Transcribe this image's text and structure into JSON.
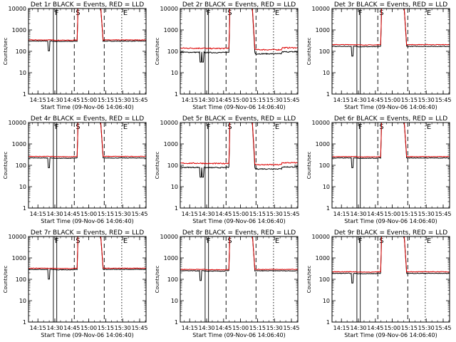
{
  "chart_data": [
    {
      "type": "line",
      "title": "Det 1r BLACK = Events, RED = LLD",
      "ylabel": "Counts/sec",
      "xlabel": "Start Time (09-Nov-06 14:06:40)",
      "series": [
        {
          "name": "Events",
          "color": "#000000",
          "values": {
            "base": 300,
            "noise": 0.03,
            "quiet": true
          }
        },
        {
          "name": "LLD",
          "color": "#dd0000",
          "values": {
            "base": 340,
            "noise": 0.03,
            "quiet": true
          }
        }
      ]
    },
    {
      "type": "line",
      "title": "Det 2r BLACK = Events, RED = LLD",
      "ylabel": "Counts/sec",
      "xlabel": "Start Time (09-Nov-06 14:06:40)",
      "series": [
        {
          "name": "Events",
          "color": "#000000",
          "values": {
            "base": 90,
            "noise": 0.05,
            "quiet": false
          }
        },
        {
          "name": "LLD",
          "color": "#dd0000",
          "values": {
            "base": 140,
            "noise": 0.06,
            "quiet": false
          }
        }
      ]
    },
    {
      "type": "line",
      "title": "Det 3r BLACK = Events, RED = LLD",
      "ylabel": "Counts/sec",
      "xlabel": "Start Time (09-Nov-06 14:06:40)",
      "series": [
        {
          "name": "Events",
          "color": "#000000",
          "values": {
            "base": 170,
            "noise": 0.03,
            "quiet": true
          }
        },
        {
          "name": "LLD",
          "color": "#dd0000",
          "values": {
            "base": 205,
            "noise": 0.03,
            "quiet": true
          }
        }
      ]
    },
    {
      "type": "line",
      "title": "Det 4r BLACK = Events, RED = LLD",
      "ylabel": "Counts/sec",
      "xlabel": "Start Time (09-Nov-06 14:06:40)",
      "series": [
        {
          "name": "Events",
          "color": "#000000",
          "values": {
            "base": 220,
            "noise": 0.03,
            "quiet": true
          }
        },
        {
          "name": "LLD",
          "color": "#dd0000",
          "values": {
            "base": 260,
            "noise": 0.03,
            "quiet": true
          }
        }
      ]
    },
    {
      "type": "line",
      "title": "Det 5r BLACK = Events, RED = LLD",
      "ylabel": "Counts/sec",
      "xlabel": "Start Time (09-Nov-06 14:06:40)",
      "series": [
        {
          "name": "Events",
          "color": "#000000",
          "values": {
            "base": 80,
            "noise": 0.05,
            "quiet": false
          }
        },
        {
          "name": "LLD",
          "color": "#dd0000",
          "values": {
            "base": 125,
            "noise": 0.06,
            "quiet": false
          }
        }
      ]
    },
    {
      "type": "line",
      "title": "Det 6r BLACK = Events, RED = LLD",
      "ylabel": "Counts/sec",
      "xlabel": "Start Time (09-Nov-06 14:06:40)",
      "series": [
        {
          "name": "Events",
          "color": "#000000",
          "values": {
            "base": 220,
            "noise": 0.03,
            "quiet": true
          }
        },
        {
          "name": "LLD",
          "color": "#dd0000",
          "values": {
            "base": 255,
            "noise": 0.03,
            "quiet": true
          }
        }
      ]
    },
    {
      "type": "line",
      "title": "Det 7r BLACK = Events, RED = LLD",
      "ylabel": "Counts/sec",
      "xlabel": "Start Time (09-Nov-06 14:06:40)",
      "series": [
        {
          "name": "Events",
          "color": "#000000",
          "values": {
            "base": 290,
            "noise": 0.03,
            "quiet": true
          }
        },
        {
          "name": "LLD",
          "color": "#dd0000",
          "values": {
            "base": 330,
            "noise": 0.03,
            "quiet": true
          }
        }
      ]
    },
    {
      "type": "line",
      "title": "Det 8r BLACK = Events, RED = LLD",
      "ylabel": "Counts/sec",
      "xlabel": "Start Time (09-Nov-06 14:06:40)",
      "series": [
        {
          "name": "Events",
          "color": "#000000",
          "values": {
            "base": 250,
            "noise": 0.03,
            "quiet": true
          }
        },
        {
          "name": "LLD",
          "color": "#dd0000",
          "values": {
            "base": 290,
            "noise": 0.03,
            "quiet": true
          }
        }
      ]
    },
    {
      "type": "line",
      "title": "Det 9r BLACK = Events, RED = LLD",
      "ylabel": "Counts/sec",
      "xlabel": "Start Time (09-Nov-06 14:06:40)",
      "series": [
        {
          "name": "Events",
          "color": "#000000",
          "values": {
            "base": 190,
            "noise": 0.03,
            "quiet": true
          }
        },
        {
          "name": "LLD",
          "color": "#dd0000",
          "values": {
            "base": 225,
            "noise": 0.03,
            "quiet": true
          }
        }
      ]
    }
  ],
  "shared": {
    "x_ticks": [
      "14:15",
      "14:30",
      "14:45",
      "15:00",
      "15:15",
      "15:30",
      "15:45"
    ],
    "x_tick_values_min": [
      8.33,
      23.33,
      38.33,
      53.33,
      68.33,
      83.33,
      98.33
    ],
    "xlim_min": [
      0,
      104
    ],
    "ylim": [
      1,
      10000
    ],
    "y_ticks": [
      "1",
      "10",
      "100",
      "1000",
      "10000"
    ],
    "y_tick_values": [
      1,
      10,
      100,
      1000,
      10000
    ],
    "markers": [
      {
        "label": "F",
        "x_min": 22.0,
        "style": "solid"
      },
      {
        "label": "",
        "x_min": 25.0,
        "style": "solid"
      },
      {
        "label": "S",
        "x_min": 40.5,
        "style": "dashed"
      },
      {
        "label": "",
        "x_min": 67.0,
        "style": "dashed"
      },
      {
        "label": "E",
        "x_min": 82.5,
        "style": "dotted"
      }
    ],
    "saturation_interval_min": [
      44,
      63
    ],
    "dip_min": 18
  }
}
